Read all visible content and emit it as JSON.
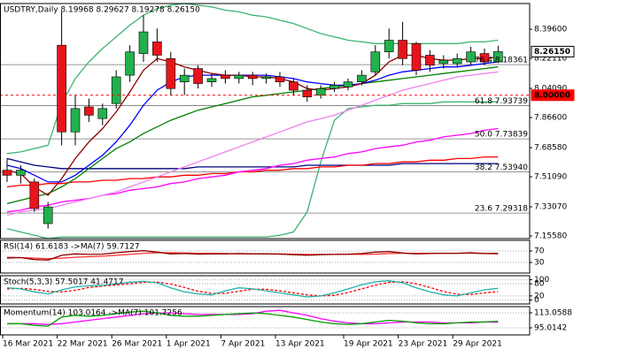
{
  "chart_data": [
    {
      "type": "candlestick",
      "title": "USDTRY,Daily  8.19968 8.29627 8.19278 8.26150",
      "categories": [
        "16 Mar 2021",
        null,
        null,
        null,
        "22 Mar 2021",
        null,
        null,
        null,
        "26 Mar 2021",
        null,
        null,
        null,
        "1 Apr 2021",
        null,
        null,
        null,
        "7 Apr 2021",
        null,
        null,
        null,
        "13 Apr 2021",
        null,
        null,
        null,
        null,
        "19 Apr 2021",
        null,
        null,
        null,
        "23 Apr 2021",
        null,
        null,
        null,
        "29 Apr 2021",
        null,
        null,
        null
      ],
      "open": [
        7.55,
        7.52,
        7.48,
        7.23,
        8.3,
        7.78,
        7.93,
        7.86,
        7.95,
        8.12,
        8.25,
        8.32,
        8.22,
        8.08,
        8.16,
        8.08,
        8.12,
        8.1,
        8.12,
        8.1,
        8.11,
        8.08,
        8.03,
        8.0,
        8.04,
        8.05,
        8.08,
        8.14,
        8.26,
        8.33,
        8.31,
        8.24,
        8.19,
        8.19,
        8.2,
        8.25,
        8.19968
      ],
      "high": [
        7.62,
        7.58,
        7.5,
        7.36,
        8.5,
        8.0,
        7.98,
        7.95,
        8.15,
        8.3,
        8.48,
        8.4,
        8.26,
        8.16,
        8.18,
        8.13,
        8.15,
        8.14,
        8.14,
        8.13,
        8.14,
        8.1,
        8.06,
        8.06,
        8.08,
        8.1,
        8.15,
        8.3,
        8.4,
        8.44,
        8.32,
        8.27,
        8.24,
        8.25,
        8.29,
        8.28,
        8.29627
      ],
      "low": [
        7.48,
        7.47,
        7.3,
        7.2,
        7.7,
        7.7,
        7.84,
        7.82,
        7.92,
        8.08,
        8.2,
        8.2,
        8.0,
        8.0,
        8.04,
        8.05,
        8.07,
        8.07,
        8.06,
        8.07,
        8.05,
        8.0,
        7.96,
        7.98,
        8.02,
        8.03,
        8.06,
        8.12,
        8.22,
        8.18,
        8.12,
        8.14,
        8.16,
        8.17,
        8.18,
        8.18,
        8.19278
      ],
      "close": [
        7.52,
        7.55,
        7.32,
        7.33,
        7.78,
        7.92,
        7.88,
        7.92,
        8.11,
        8.26,
        8.38,
        8.24,
        8.04,
        8.12,
        8.07,
        8.1,
        8.1,
        8.12,
        8.1,
        8.11,
        8.08,
        8.03,
        7.99,
        8.04,
        8.06,
        8.08,
        8.12,
        8.26,
        8.33,
        8.22,
        8.15,
        8.18,
        8.21,
        8.22,
        8.26,
        8.2,
        8.2615
      ],
      "up_color": "#22b14c",
      "down_color": "#e8141b",
      "ylim": [
        7.14,
        8.55
      ],
      "yticks": [
        {
          "value": 8.396,
          "label": "8.39600"
        },
        {
          "value": 8.2211,
          "label": "8.22110"
        },
        {
          "value": 8.0409,
          "label": "8.04090"
        },
        {
          "value": 7.866,
          "label": "7.86600"
        },
        {
          "value": 7.6858,
          "label": "7.68580"
        },
        {
          "value": 7.5109,
          "label": "7.51090"
        },
        {
          "value": 7.3307,
          "label": "7.33070"
        },
        {
          "value": 7.1558,
          "label": "7.15580"
        }
      ],
      "levels": [
        {
          "value": 8.18361,
          "label": "76.4 8.18361"
        },
        {
          "value": 7.93739,
          "label": "61.8 7.93739"
        },
        {
          "value": 7.73839,
          "label": "50.0 7.73839"
        },
        {
          "value": 7.5394,
          "label": "38.2 7.53940"
        },
        {
          "value": 7.29318,
          "label": "23.6 7.29318"
        }
      ],
      "price_marks": [
        {
          "value": 8.2615,
          "label": "8.26150",
          "color": "#000000",
          "dashed_line": false
        },
        {
          "value": 8,
          "label": "8.00000",
          "color": "#ff0000",
          "dashed_line": true
        }
      ],
      "lines": [
        {
          "color": "#3cb371",
          "values": [
            7.65,
            7.66,
            7.68,
            7.7,
            7.95,
            8.1,
            8.2,
            8.28,
            8.35,
            8.42,
            8.48,
            8.52,
            8.54,
            8.55,
            8.54,
            8.53,
            8.51,
            8.5,
            8.48,
            8.47,
            8.45,
            8.43,
            8.4,
            8.37,
            8.35,
            8.33,
            8.32,
            8.31,
            8.31,
            8.31,
            8.31,
            8.31,
            8.31,
            8.31,
            8.32,
            8.32,
            8.33
          ]
        },
        {
          "color": "#3cb371",
          "values": [
            7.2,
            7.18,
            7.16,
            7.14,
            7.15,
            7.15,
            7.15,
            7.15,
            7.15,
            7.15,
            7.15,
            7.15,
            7.15,
            7.15,
            7.15,
            7.15,
            7.15,
            7.15,
            7.15,
            7.15,
            7.16,
            7.18,
            7.3,
            7.6,
            7.85,
            7.92,
            7.93,
            7.94,
            7.94,
            7.95,
            7.95,
            7.95,
            7.96,
            7.96,
            7.96,
            7.96,
            7.96
          ]
        },
        {
          "color": "#000080",
          "values": [
            7.62,
            7.6,
            7.58,
            7.57,
            7.56,
            7.56,
            7.56,
            7.56,
            7.56,
            7.56,
            7.56,
            7.56,
            7.56,
            7.56,
            7.57,
            7.57,
            7.57,
            7.57,
            7.57,
            7.57,
            7.57,
            7.57,
            7.58,
            7.58,
            7.58,
            7.58,
            7.58,
            7.58,
            7.58,
            7.59,
            7.59,
            7.59,
            7.59,
            7.59,
            7.59,
            7.59,
            7.59
          ]
        },
        {
          "color": "#ff0000",
          "values": [
            7.45,
            7.46,
            7.46,
            7.47,
            7.47,
            7.48,
            7.48,
            7.49,
            7.49,
            7.5,
            7.5,
            7.51,
            7.51,
            7.52,
            7.52,
            7.53,
            7.53,
            7.54,
            7.54,
            7.55,
            7.55,
            7.56,
            7.56,
            7.57,
            7.57,
            7.58,
            7.58,
            7.59,
            7.59,
            7.6,
            7.6,
            7.61,
            7.61,
            7.62,
            7.62,
            7.63,
            7.63
          ]
        },
        {
          "color": "#ff00ff",
          "values": [
            7.3,
            7.31,
            7.33,
            7.34,
            7.36,
            7.37,
            7.38,
            7.4,
            7.41,
            7.43,
            7.44,
            7.45,
            7.47,
            7.48,
            7.5,
            7.51,
            7.52,
            7.54,
            7.55,
            7.56,
            7.58,
            7.59,
            7.61,
            7.62,
            7.63,
            7.65,
            7.66,
            7.68,
            7.69,
            7.7,
            7.72,
            7.73,
            7.75,
            7.76,
            7.77,
            7.79,
            7.8
          ]
        },
        {
          "color": "#ee82ee",
          "values": [
            7.28,
            7.3,
            7.31,
            7.32,
            7.34,
            7.36,
            7.38,
            7.4,
            7.42,
            7.45,
            7.48,
            7.51,
            7.54,
            7.57,
            7.6,
            7.63,
            7.66,
            7.69,
            7.72,
            7.75,
            7.78,
            7.81,
            7.84,
            7.86,
            7.88,
            7.91,
            7.94,
            7.97,
            8.0,
            8.03,
            8.05,
            8.07,
            8.09,
            8.11,
            8.12,
            8.13,
            8.14
          ]
        },
        {
          "color": "#008000",
          "values": [
            7.35,
            7.37,
            7.39,
            7.41,
            7.45,
            7.5,
            7.56,
            7.62,
            7.68,
            7.72,
            7.77,
            7.81,
            7.85,
            7.88,
            7.91,
            7.93,
            7.95,
            7.97,
            7.99,
            8.0,
            8.01,
            8.02,
            8.03,
            8.04,
            8.05,
            8.06,
            8.07,
            8.08,
            8.09,
            8.1,
            8.11,
            8.12,
            8.13,
            8.14,
            8.15,
            8.16,
            8.17
          ]
        },
        {
          "color": "#0000ff",
          "values": [
            7.58,
            7.56,
            7.52,
            7.48,
            7.48,
            7.52,
            7.58,
            7.64,
            7.72,
            7.82,
            7.94,
            8.03,
            8.08,
            8.11,
            8.12,
            8.12,
            8.12,
            8.12,
            8.12,
            8.12,
            8.11,
            8.1,
            8.08,
            8.07,
            8.06,
            8.06,
            8.07,
            8.09,
            8.12,
            8.14,
            8.15,
            8.16,
            8.17,
            8.17,
            8.18,
            8.19,
            8.2
          ]
        },
        {
          "color": "#8b0000",
          "values": [
            7.55,
            7.53,
            7.45,
            7.4,
            7.5,
            7.62,
            7.72,
            7.8,
            7.9,
            8.02,
            8.15,
            8.22,
            8.2,
            8.17,
            8.15,
            8.13,
            8.12,
            8.12,
            8.11,
            8.11,
            8.1,
            8.08,
            8.04,
            8.03,
            8.04,
            8.05,
            8.07,
            8.12,
            8.2,
            8.24,
            8.24,
            8.22,
            8.21,
            8.21,
            8.22,
            8.22,
            8.23
          ]
        }
      ]
    },
    {
      "type": "line",
      "title": "RSI(14) 61.6183 ->MA(7) 59.7127",
      "ylim": [
        -7,
        107
      ],
      "yticks": [
        70,
        30
      ],
      "lines": [
        {
          "color": "#ff3030",
          "values": [
            48,
            47,
            45,
            43,
            45,
            48,
            50,
            52,
            55,
            58,
            62,
            64,
            64,
            63,
            62,
            62,
            61,
            60,
            60,
            60,
            60,
            59,
            58,
            58,
            58,
            58,
            58,
            59,
            61,
            62,
            62,
            62,
            62,
            62,
            62,
            61,
            59.7127
          ]
        },
        {
          "color": "#8b0000",
          "values": [
            45,
            47,
            40,
            38,
            55,
            60,
            58,
            59,
            64,
            68,
            71,
            66,
            60,
            61,
            59,
            60,
            60,
            61,
            60,
            60,
            59,
            57,
            55,
            57,
            58,
            59,
            61,
            66,
            68,
            63,
            60,
            61,
            62,
            62,
            64,
            61,
            61.6183
          ]
        }
      ]
    },
    {
      "type": "line",
      "title": "Stoch(5,3,3) 57.5017 41.4717",
      "ylim": [
        -20,
        120
      ],
      "yticks": [
        100,
        80,
        20,
        0
      ],
      "lines": [
        {
          "color": "#ff0000",
          "style": "dashed",
          "values": [
            55,
            57,
            52,
            42,
            40,
            48,
            62,
            69,
            74,
            80,
            87,
            88,
            79,
            62,
            43,
            32,
            33,
            43,
            53,
            53,
            45,
            35,
            25,
            20,
            23,
            37,
            55,
            73,
            87,
            90,
            80,
            62,
            42,
            28,
            27,
            35,
            41.4717
          ]
        },
        {
          "color": "#20b2aa",
          "values": [
            60,
            55,
            40,
            30,
            50,
            65,
            70,
            72,
            80,
            88,
            92,
            85,
            60,
            40,
            30,
            25,
            45,
            60,
            55,
            45,
            35,
            25,
            15,
            20,
            35,
            55,
            75,
            90,
            95,
            85,
            60,
            40,
            25,
            20,
            35,
            50,
            57.5017
          ]
        }
      ]
    },
    {
      "type": "line",
      "title": "Momentum(14) 103.0164 ->MA(7) 101.7256",
      "ylim": [
        86.5,
        120.5
      ],
      "yticks": [
        113.0588,
        95.0142
      ],
      "lines": [
        {
          "color": "#ff00ff",
          "values": [
            100,
            100,
            100,
            99,
            100,
            102,
            104,
            106,
            108,
            110,
            112,
            113,
            113,
            112,
            111,
            111,
            111,
            111,
            112,
            115,
            116,
            113,
            110,
            106,
            103,
            101,
            100,
            100,
            101,
            102,
            102,
            102,
            101,
            101,
            101,
            102,
            101.7256
          ]
        },
        {
          "color": "#00a000",
          "values": [
            100,
            100,
            98,
            97,
            108,
            110,
            109,
            110,
            112,
            114,
            115,
            113,
            110,
            109,
            109,
            110,
            111,
            112,
            113,
            112,
            110,
            108,
            105,
            102,
            100,
            99,
            100,
            102,
            104,
            103,
            101,
            100,
            100,
            101,
            102,
            102,
            103.0164
          ]
        }
      ]
    }
  ]
}
